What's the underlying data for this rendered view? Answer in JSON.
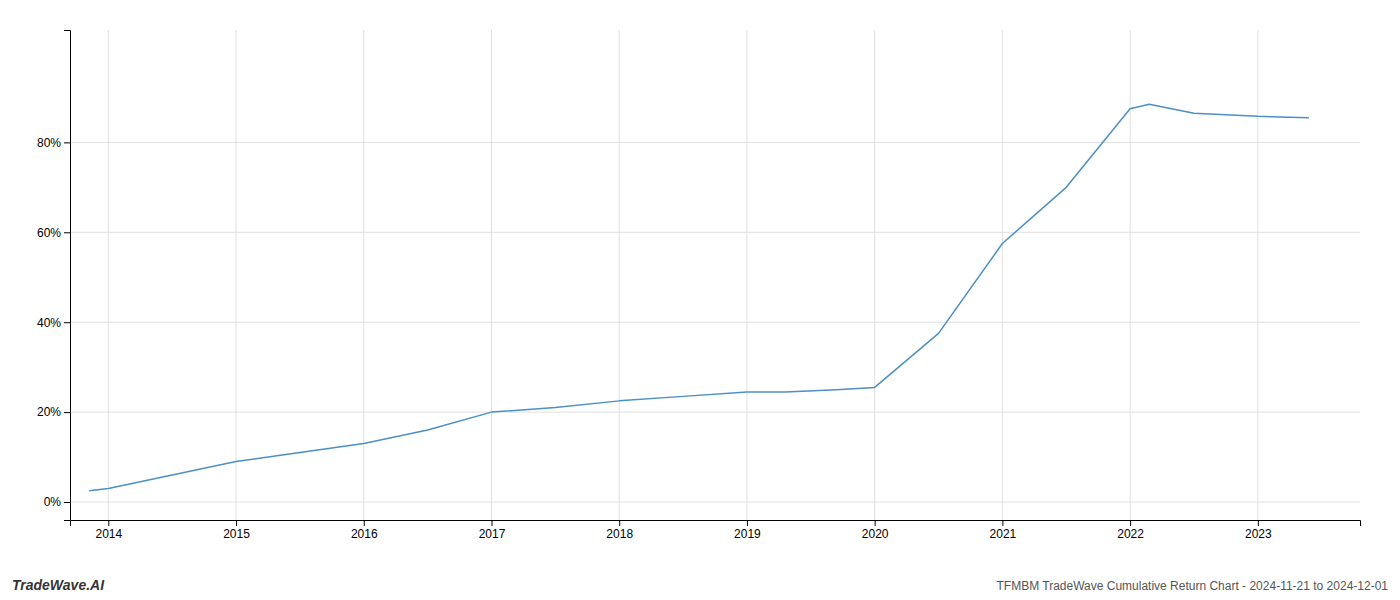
{
  "chart_data": {
    "type": "line",
    "title": "TFMBM TradeWave Cumulative Return Chart - 2024-11-21 to 2024-12-01",
    "annotations": [
      "TradeWave.AI"
    ],
    "x": [
      2013.85,
      2014.0,
      2014.5,
      2015.0,
      2015.5,
      2016.0,
      2016.5,
      2017.0,
      2017.5,
      2018.0,
      2018.5,
      2019.0,
      2019.3,
      2019.7,
      2020.0,
      2020.5,
      2021.0,
      2021.5,
      2022.0,
      2022.15,
      2022.5,
      2023.0,
      2023.4
    ],
    "values": [
      0.025,
      0.03,
      0.06,
      0.09,
      0.11,
      0.13,
      0.16,
      0.2,
      0.21,
      0.225,
      0.235,
      0.245,
      0.245,
      0.25,
      0.255,
      0.375,
      0.575,
      0.7,
      0.875,
      0.885,
      0.865,
      0.858,
      0.855
    ],
    "color": "#4a90c4",
    "xlim": [
      2013.7,
      2023.8
    ],
    "xticks": [
      2014,
      2015,
      2016,
      2017,
      2018,
      2019,
      2020,
      2021,
      2022,
      2023
    ],
    "ylim": [
      -0.04,
      1.05
    ],
    "yticks": [
      {
        "value": 0.0,
        "label": "0%"
      },
      {
        "value": 0.2,
        "label": "20%"
      },
      {
        "value": 0.4,
        "label": "40%"
      },
      {
        "value": 0.6,
        "label": "60%"
      },
      {
        "value": 0.8,
        "label": "80%"
      }
    ],
    "grid": true
  }
}
